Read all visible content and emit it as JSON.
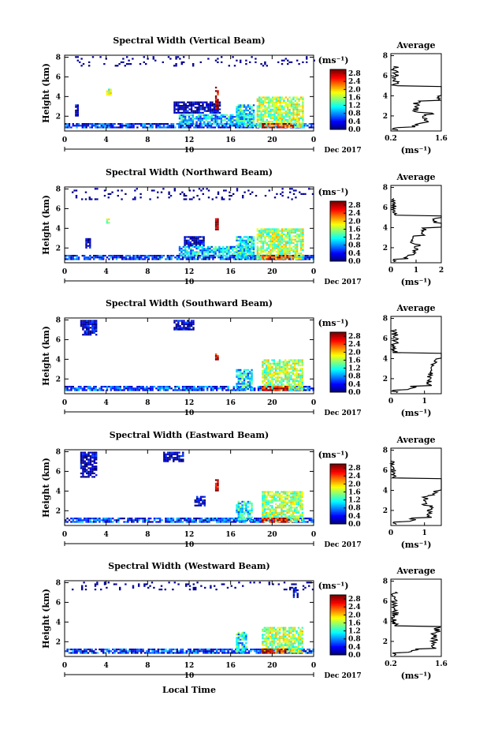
{
  "figure": {
    "date_label": "Dec 2017",
    "day_label": "10",
    "bottom_xlabel": "Local Time",
    "ylabel": "Height (km)",
    "colorbar_unit": "(ms⁻¹)",
    "avg_title": "Average",
    "avg_unit": "(ms⁻¹)"
  },
  "chart_data": [
    {
      "type": "heatmap",
      "title": "Spectral Width (Vertical Beam)",
      "x_ticks": [
        "0",
        "4",
        "8",
        "12",
        "16",
        "20",
        "0"
      ],
      "y_ticks": [
        "2",
        "4",
        "6",
        "8"
      ],
      "xlim": [
        0,
        24
      ],
      "ylim": [
        0.5,
        8.2
      ],
      "colorbar_ticks": [
        "0.0",
        "0.4",
        "0.8",
        "1.2",
        "1.6",
        "2.0",
        "2.4",
        "2.8"
      ],
      "colorbar_range": [
        0.0,
        3.0
      ],
      "average_profile": {
        "x_ticks": [
          "0.2",
          "1.6"
        ],
        "xlim": [
          0.2,
          1.6
        ],
        "y_ticks": [
          "2",
          "4",
          "6",
          "8"
        ],
        "ylim": [
          0.5,
          8.2
        ]
      },
      "patches": [
        {
          "t": [
            0.0,
            24.0
          ],
          "h": [
            0.9,
            1.3
          ],
          "v": 0.5
        },
        {
          "t": [
            10.5,
            15.0
          ],
          "h": [
            2.3,
            3.5
          ],
          "v": 0.1
        },
        {
          "t": [
            11.0,
            18.0
          ],
          "h": [
            1.3,
            2.2
          ],
          "v": 1.0
        },
        {
          "t": [
            16.5,
            18.2
          ],
          "h": [
            1.0,
            3.2
          ],
          "v": 1.1
        },
        {
          "t": [
            18.5,
            23.0
          ],
          "h": [
            1.0,
            4.0
          ],
          "v": 1.6
        },
        {
          "t": [
            19.0,
            22.0
          ],
          "h": [
            0.9,
            1.3
          ],
          "v": 2.7
        },
        {
          "t": [
            14.5,
            14.7
          ],
          "h": [
            2.8,
            5.0
          ],
          "v": 2.9
        },
        {
          "t": [
            4.0,
            4.4
          ],
          "h": [
            4.2,
            4.8
          ],
          "v": 1.6
        },
        {
          "t": [
            1.0,
            1.3
          ],
          "h": [
            2.0,
            3.2
          ],
          "v": 0.1
        },
        {
          "t": [
            1.0,
            24.0
          ],
          "h": [
            7.2,
            8.1
          ],
          "v": 0.05
        }
      ]
    },
    {
      "type": "heatmap",
      "title": "Spectral Width (Northward Beam)",
      "x_ticks": [
        "0",
        "4",
        "8",
        "12",
        "16",
        "20",
        "0"
      ],
      "y_ticks": [
        "2",
        "4",
        "6",
        "8"
      ],
      "xlim": [
        0,
        24
      ],
      "ylim": [
        0.5,
        8.2
      ],
      "colorbar_ticks": [
        "0.0",
        "0.4",
        "0.8",
        "1.2",
        "1.6",
        "2.0",
        "2.4",
        "2.8"
      ],
      "colorbar_range": [
        0.0,
        3.0
      ],
      "average_profile": {
        "x_ticks": [
          "0",
          "1",
          "2"
        ],
        "xlim": [
          0,
          2
        ],
        "y_ticks": [
          "2",
          "4",
          "6",
          "8"
        ],
        "ylim": [
          0.5,
          8.2
        ]
      },
      "patches": [
        {
          "t": [
            0.0,
            24.0
          ],
          "h": [
            0.9,
            1.3
          ],
          "v": 0.5
        },
        {
          "t": [
            11.5,
            13.5
          ],
          "h": [
            2.3,
            3.2
          ],
          "v": 0.1
        },
        {
          "t": [
            11.0,
            18.0
          ],
          "h": [
            1.3,
            2.2
          ],
          "v": 1.0
        },
        {
          "t": [
            16.5,
            18.2
          ],
          "h": [
            1.0,
            3.2
          ],
          "v": 1.1
        },
        {
          "t": [
            18.5,
            23.0
          ],
          "h": [
            1.0,
            4.0
          ],
          "v": 1.6
        },
        {
          "t": [
            19.0,
            22.0
          ],
          "h": [
            0.9,
            1.3
          ],
          "v": 2.7
        },
        {
          "t": [
            14.5,
            14.7
          ],
          "h": [
            3.8,
            5.2
          ],
          "v": 2.9
        },
        {
          "t": [
            4.0,
            4.3
          ],
          "h": [
            4.5,
            5.0
          ],
          "v": 1.6
        },
        {
          "t": [
            2.0,
            2.5
          ],
          "h": [
            2.0,
            3.0
          ],
          "v": 0.1
        },
        {
          "t": [
            0.5,
            24.0
          ],
          "h": [
            7.0,
            8.1
          ],
          "v": 0.05
        }
      ]
    },
    {
      "type": "heatmap",
      "title": "Spectral Width (Southward Beam)",
      "x_ticks": [
        "0",
        "4",
        "8",
        "12",
        "16",
        "20",
        "0"
      ],
      "y_ticks": [
        "2",
        "4",
        "6",
        "8"
      ],
      "xlim": [
        0,
        24
      ],
      "ylim": [
        0.5,
        8.2
      ],
      "colorbar_ticks": [
        "0.0",
        "0.4",
        "0.8",
        "1.2",
        "1.6",
        "2.0",
        "2.4",
        "2.8"
      ],
      "colorbar_range": [
        0.0,
        3.0
      ],
      "average_profile": {
        "x_ticks": [
          "0",
          "1"
        ],
        "xlim": [
          0,
          1.5
        ],
        "y_ticks": [
          "2",
          "4",
          "6",
          "8"
        ],
        "ylim": [
          0.5,
          8.2
        ]
      },
      "patches": [
        {
          "t": [
            0.0,
            24.0
          ],
          "h": [
            0.9,
            1.3
          ],
          "v": 0.5
        },
        {
          "t": [
            1.5,
            3.0
          ],
          "h": [
            6.5,
            8.0
          ],
          "v": 0.1
        },
        {
          "t": [
            10.5,
            12.5
          ],
          "h": [
            7.0,
            8.0
          ],
          "v": 0.1
        },
        {
          "t": [
            16.5,
            18.0
          ],
          "h": [
            1.0,
            3.0
          ],
          "v": 1.1
        },
        {
          "t": [
            19.0,
            23.0
          ],
          "h": [
            1.0,
            4.0
          ],
          "v": 1.6
        },
        {
          "t": [
            19.0,
            21.5
          ],
          "h": [
            0.9,
            1.3
          ],
          "v": 2.7
        },
        {
          "t": [
            14.5,
            14.7
          ],
          "h": [
            3.8,
            4.6
          ],
          "v": 2.9
        }
      ]
    },
    {
      "type": "heatmap",
      "title": "Spectral Width (Eastward Beam)",
      "x_ticks": [
        "0",
        "4",
        "8",
        "12",
        "16",
        "20",
        "0"
      ],
      "y_ticks": [
        "2",
        "4",
        "6",
        "8"
      ],
      "xlim": [
        0,
        24
      ],
      "ylim": [
        0.5,
        8.2
      ],
      "colorbar_ticks": [
        "0.0",
        "0.4",
        "0.8",
        "1.2",
        "1.6",
        "2.0",
        "2.4",
        "2.8"
      ],
      "colorbar_range": [
        0.0,
        3.0
      ],
      "average_profile": {
        "x_ticks": [
          "0",
          "1"
        ],
        "xlim": [
          0,
          1.5
        ],
        "y_ticks": [
          "2",
          "4",
          "6",
          "8"
        ],
        "ylim": [
          0.5,
          8.2
        ]
      },
      "patches": [
        {
          "t": [
            0.0,
            24.0
          ],
          "h": [
            0.9,
            1.3
          ],
          "v": 0.5
        },
        {
          "t": [
            1.5,
            3.0
          ],
          "h": [
            5.5,
            8.0
          ],
          "v": 0.1
        },
        {
          "t": [
            9.5,
            11.5
          ],
          "h": [
            7.0,
            8.0
          ],
          "v": 0.1
        },
        {
          "t": [
            12.5,
            13.5
          ],
          "h": [
            2.5,
            3.5
          ],
          "v": 0.1
        },
        {
          "t": [
            16.5,
            18.0
          ],
          "h": [
            1.0,
            3.0
          ],
          "v": 1.1
        },
        {
          "t": [
            19.0,
            23.0
          ],
          "h": [
            1.0,
            4.0
          ],
          "v": 1.6
        },
        {
          "t": [
            19.0,
            21.5
          ],
          "h": [
            0.9,
            1.3
          ],
          "v": 2.7
        },
        {
          "t": [
            14.5,
            14.7
          ],
          "h": [
            3.8,
            5.2
          ],
          "v": 2.9
        }
      ]
    },
    {
      "type": "heatmap",
      "title": "Spectral Width (Westward Beam)",
      "x_ticks": [
        "0",
        "4",
        "8",
        "12",
        "16",
        "20",
        "0"
      ],
      "y_ticks": [
        "2",
        "4",
        "6",
        "8"
      ],
      "xlim": [
        0,
        24
      ],
      "ylim": [
        0.5,
        8.2
      ],
      "colorbar_ticks": [
        "0.0",
        "0.4",
        "0.8",
        "1.2",
        "1.6",
        "2.0",
        "2.4",
        "2.8"
      ],
      "colorbar_range": [
        0.0,
        3.0
      ],
      "average_profile": {
        "x_ticks": [
          "0.2",
          "1.6"
        ],
        "xlim": [
          0.2,
          1.6
        ],
        "y_ticks": [
          "2",
          "4",
          "6",
          "8"
        ],
        "ylim": [
          0.5,
          8.2
        ]
      },
      "patches": [
        {
          "t": [
            0.0,
            24.0
          ],
          "h": [
            0.9,
            1.3
          ],
          "v": 0.5
        },
        {
          "t": [
            16.5,
            17.5
          ],
          "h": [
            1.0,
            3.0
          ],
          "v": 1.1
        },
        {
          "t": [
            19.0,
            23.0
          ],
          "h": [
            1.0,
            3.5
          ],
          "v": 1.6
        },
        {
          "t": [
            19.0,
            21.5
          ],
          "h": [
            0.9,
            1.3
          ],
          "v": 2.7
        },
        {
          "t": [
            22.0,
            22.5
          ],
          "h": [
            6.5,
            7.5
          ],
          "v": 0.1
        },
        {
          "t": [
            0.5,
            24.0
          ],
          "h": [
            7.3,
            8.1
          ],
          "v": 0.05
        }
      ]
    }
  ]
}
